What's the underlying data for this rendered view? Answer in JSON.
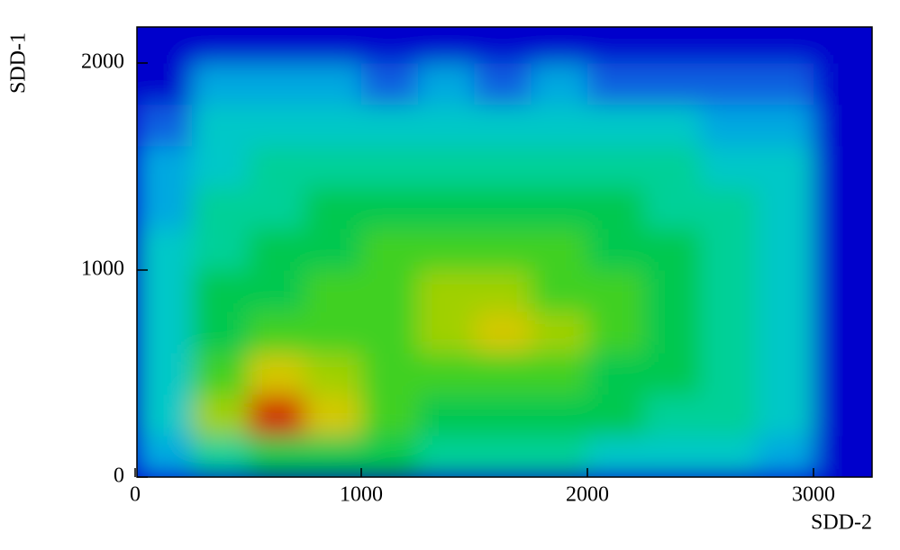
{
  "chart_data": {
    "type": "contour",
    "xlabel": "SDD-2",
    "ylabel": "SDD-1",
    "xlim": [
      0,
      3260
    ],
    "ylim": [
      0,
      2170
    ],
    "xticks": [
      0,
      1000,
      2000,
      3000
    ],
    "yticks": [
      0,
      1000,
      2000
    ],
    "x": [
      125,
      375,
      625,
      875,
      1125,
      1375,
      1625,
      1875,
      2125,
      2375,
      2625,
      2875,
      3125
    ],
    "y": [
      100,
      300,
      500,
      700,
      900,
      1100,
      1300,
      1500,
      1700,
      1900,
      2100
    ],
    "z": [
      [
        2,
        4,
        5,
        5,
        5,
        4,
        4,
        4,
        3,
        3,
        3,
        2,
        0
      ],
      [
        3,
        7,
        10,
        8,
        6,
        5,
        5,
        5,
        5,
        4,
        4,
        3,
        0
      ],
      [
        3,
        6,
        8,
        7,
        6,
        6,
        6,
        6,
        5,
        5,
        4,
        3,
        0
      ],
      [
        3,
        5,
        6,
        6,
        6,
        7,
        8,
        7,
        6,
        5,
        4,
        3,
        0
      ],
      [
        3,
        5,
        5,
        6,
        6,
        7,
        7,
        6,
        6,
        5,
        4,
        3,
        0
      ],
      [
        3,
        4,
        5,
        5,
        6,
        6,
        6,
        6,
        5,
        5,
        4,
        3,
        0
      ],
      [
        2,
        4,
        4,
        5,
        5,
        5,
        5,
        5,
        5,
        4,
        4,
        3,
        0
      ],
      [
        2,
        3,
        4,
        4,
        4,
        4,
        4,
        4,
        4,
        4,
        3,
        3,
        0
      ],
      [
        1,
        3,
        3,
        3,
        3,
        3,
        3,
        3,
        3,
        3,
        2,
        2,
        0
      ],
      [
        0,
        2,
        2,
        2,
        1,
        2,
        1,
        2,
        1,
        1,
        1,
        1,
        0
      ],
      [
        0,
        0,
        0,
        0,
        0,
        0,
        0,
        0,
        0,
        0,
        0,
        0,
        0
      ]
    ],
    "colors": [
      "#0000cc",
      "#1060e0",
      "#00a8e0",
      "#00c8c8",
      "#00d098",
      "#00c850",
      "#40d020",
      "#a0d000",
      "#d4c800",
      "#e08000",
      "#d02800"
    ]
  }
}
